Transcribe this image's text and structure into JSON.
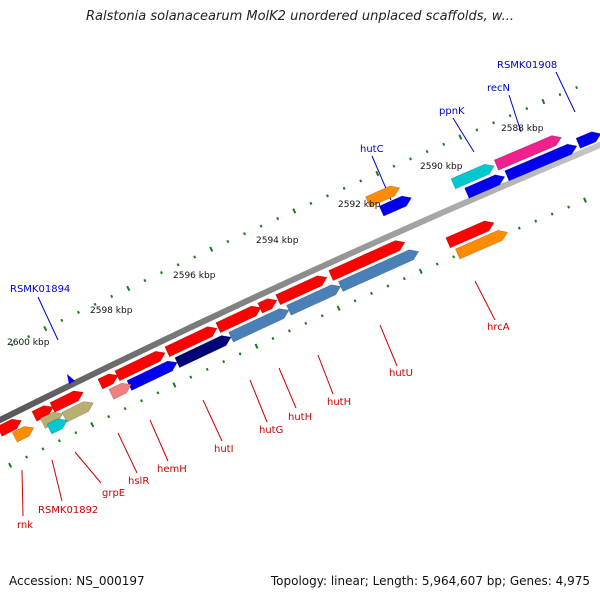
{
  "title": "Ralstonia solanacearum MolK2 unordered unplaced scaffolds, w...",
  "footer": {
    "accession": "Accession: NS_000197",
    "summary": "Topology: linear; Length: 5,964,607 bp; Genes: 4,975"
  },
  "colors": {
    "backbone": "#808080",
    "tick": "#1b7a1b",
    "label_top": "#0000cc",
    "label_bottom": "#cc0000",
    "red": "#ff0000",
    "blue": "#0000ee",
    "navy": "#000077",
    "steel": "#4a80b8",
    "orange": "#ff8c00",
    "cyan": "#00c8d0",
    "pink": "#f0208c",
    "salmon": "#f08080",
    "khaki": "#b8b070"
  },
  "scale_labels": [
    "2588 kbp",
    "2590 kbp",
    "2592 kbp",
    "2594 kbp",
    "2596 kbp",
    "2598 kbp",
    "2600 kbp"
  ],
  "gene_labels_top": [
    "RSMK01908",
    "recN",
    "ppnK",
    "hutC",
    "RSMK01894"
  ],
  "gene_labels_bottom": [
    "hrcA",
    "hutU",
    "hutH",
    "hutH",
    "hutG",
    "hutI",
    "hemH",
    "hslR",
    "grpE",
    "RSMK01892",
    "rnk"
  ]
}
